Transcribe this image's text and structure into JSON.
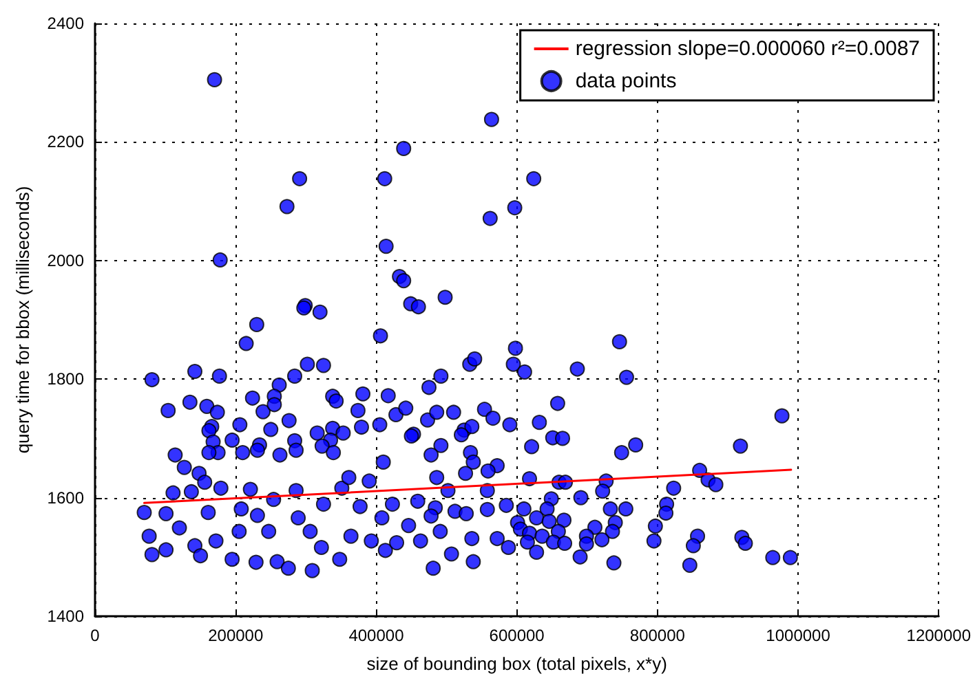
{
  "chart_data": {
    "type": "scatter",
    "xlabel": "size of bounding box (total pixels, x*y)",
    "ylabel": "query time for bbox (milliseconds)",
    "xlim": [
      0,
      1200000
    ],
    "xticks": [
      0,
      200000,
      400000,
      600000,
      800000,
      1000000,
      1200000
    ],
    "ylim": [
      1400,
      2400
    ],
    "yticks": [
      1400,
      1600,
      1800,
      2000,
      2200,
      2400
    ],
    "grid": true,
    "legend": "top right",
    "series": [
      {
        "name": "regression slope=0.000060 r²=0.0087",
        "type": "line",
        "marker": "none",
        "color": "#ff0000",
        "x": [
          70000,
          990000
        ],
        "values": [
          1591,
          1647
        ]
      },
      {
        "name": "data points",
        "marker": "circle",
        "color": "#0000ff",
        "x": [
          170000,
          291000,
          273000,
          412000,
          439000,
          178000,
          414000,
          433000,
          439000,
          498000,
          449000,
          460000,
          299000,
          297000,
          320000,
          230000,
          562000,
          597000,
          564000,
          624000,
          215000,
          406000,
          81000,
          142000,
          177000,
          302000,
          325000,
          262000,
          284000,
          104000,
          135000,
          159000,
          174000,
          166000,
          162000,
          206000,
          224000,
          239000,
          255000,
          255000,
          276000,
          250000,
          168000,
          175000,
          162000,
          195000,
          210000,
          234000,
          231000,
          263000,
          284000,
          286000,
          316000,
          338000,
          335000,
          323000,
          339000,
          353000,
          338000,
          343000,
          374000,
          379000,
          381000,
          405000,
          410000,
          417000,
          428000,
          442000,
          453000,
          450000,
          475000,
          492000,
          473000,
          486000,
          510000,
          492000,
          478000,
          525000,
          536000,
          521000,
          534000,
          538000,
          527000,
          533000,
          540000,
          554000,
          566000,
          590000,
          572000,
          559000,
          598000,
          595000,
          486000,
          484000,
          502000,
          114000,
          127000,
          148000,
          156000,
          111000,
          70000,
          77000,
          81000,
          101000,
          101000,
          120000,
          137000,
          142000,
          161000,
          150000,
          179000,
          172000,
          195000,
          208000,
          205000,
          221000,
          231000,
          229000,
          254000,
          247000,
          259000,
          275000,
          289000,
          286000,
          309000,
          306000,
          325000,
          322000,
          348000,
          351000,
          361000,
          364000,
          377000,
          390000,
          393000,
          413000,
          408000,
          429000,
          423000,
          446000,
          459000,
          463000,
          481000,
          478000,
          491000,
          507000,
          512000,
          528000,
          536000,
          538000,
          558000,
          558000,
          572000,
          588000,
          585000,
          601000,
          611000,
          746000,
          686000,
          756000,
          658000,
          632000,
          651000,
          665000,
          621000,
          749000,
          769000,
          618000,
          660000,
          669000,
          727000,
          722000,
          691000,
          649000,
          610000,
          733000,
          755000,
          643000,
          628000,
          646000,
          667000,
          740000,
          736000,
          711000,
          605000,
          618000,
          636000,
          659000,
          615000,
          652000,
          668000,
          628000,
          699000,
          699000,
          721000,
          690000,
          738000,
          797000,
          813000,
          812000,
          823000,
          795000,
          860000,
          872000,
          883000,
          918000,
          977000,
          857000,
          851000,
          846000,
          920000,
          925000,
          964000,
          989000
        ],
        "values": [
          2305,
          2138,
          2091,
          2138,
          2189,
          2001,
          2024,
          1973,
          1966,
          1938,
          1927,
          1922,
          1924,
          1920,
          1913,
          1892,
          2071,
          2089,
          2238,
          2138,
          1860,
          1873,
          1799,
          1813,
          1805,
          1825,
          1823,
          1790,
          1805,
          1747,
          1761,
          1754,
          1744,
          1720,
          1713,
          1723,
          1768,
          1745,
          1771,
          1757,
          1730,
          1715,
          1694,
          1676,
          1676,
          1697,
          1676,
          1689,
          1680,
          1672,
          1696,
          1680,
          1709,
          1717,
          1697,
          1687,
          1676,
          1709,
          1771,
          1763,
          1747,
          1719,
          1775,
          1723,
          1660,
          1772,
          1740,
          1751,
          1707,
          1704,
          1786,
          1805,
          1731,
          1744,
          1744,
          1688,
          1672,
          1714,
          1720,
          1706,
          1676,
          1660,
          1641,
          1825,
          1834,
          1749,
          1734,
          1723,
          1654,
          1645,
          1852,
          1825,
          1634,
          1583,
          1612,
          1672,
          1651,
          1641,
          1626,
          1608,
          1575,
          1535,
          1504,
          1573,
          1512,
          1549,
          1610,
          1519,
          1575,
          1502,
          1616,
          1527,
          1496,
          1581,
          1543,
          1614,
          1570,
          1491,
          1597,
          1543,
          1492,
          1481,
          1566,
          1612,
          1477,
          1543,
          1589,
          1516,
          1496,
          1616,
          1634,
          1535,
          1585,
          1628,
          1527,
          1511,
          1566,
          1524,
          1589,
          1553,
          1594,
          1527,
          1481,
          1569,
          1543,
          1505,
          1577,
          1573,
          1531,
          1492,
          1580,
          1612,
          1531,
          1516,
          1587,
          1558,
          1812,
          1863,
          1817,
          1803,
          1759,
          1727,
          1701,
          1700,
          1686,
          1676,
          1689,
          1632,
          1626,
          1626,
          1628,
          1611,
          1600,
          1598,
          1581,
          1581,
          1581,
          1581,
          1566,
          1560,
          1562,
          1558,
          1543,
          1550,
          1547,
          1540,
          1535,
          1543,
          1525,
          1525,
          1523,
          1508,
          1535,
          1522,
          1529,
          1500,
          1490,
          1552,
          1589,
          1574,
          1616,
          1527,
          1646,
          1630,
          1622,
          1687,
          1738,
          1535,
          1519,
          1486,
          1533,
          1523,
          1499,
          1499
        ]
      }
    ]
  }
}
